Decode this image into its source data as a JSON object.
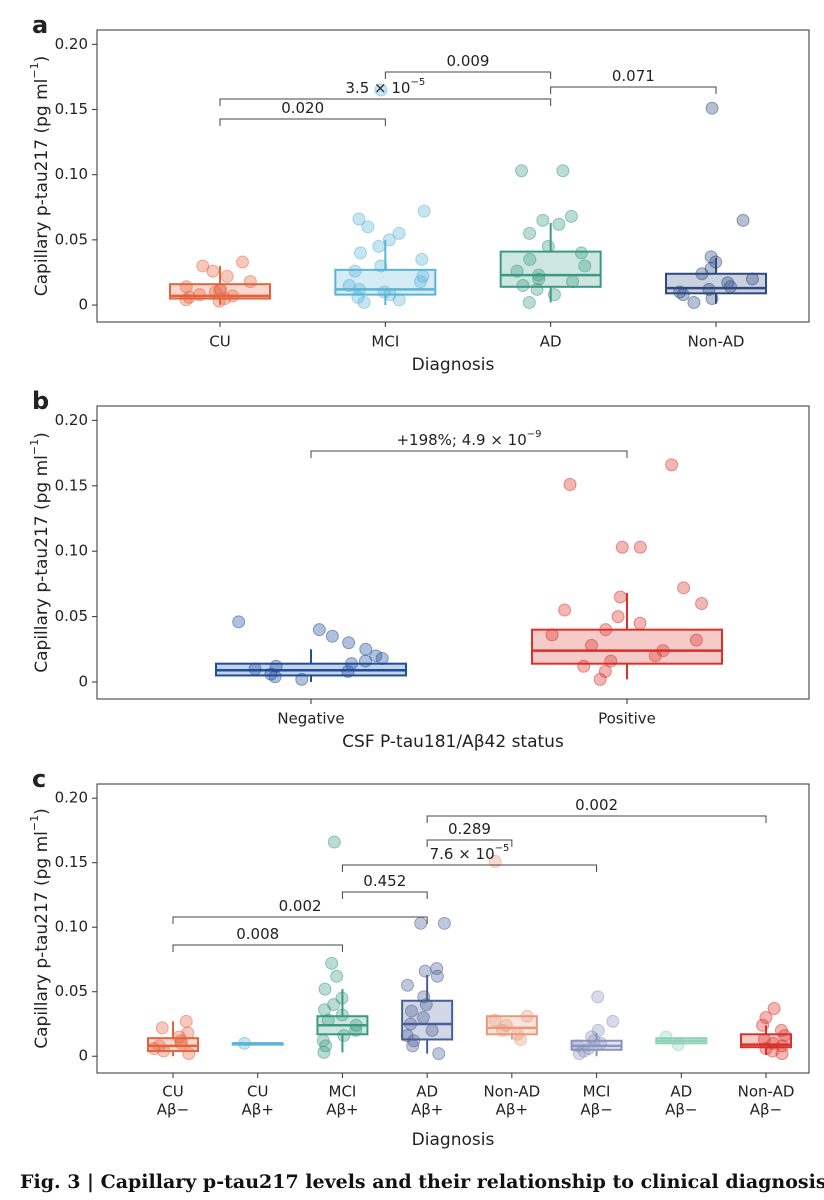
{
  "caption": "Fig. 3 | Capillary p-tau217 levels and their relationship to clinical diagnosis",
  "chart_data": [
    {
      "type": "box",
      "panel_label": "a",
      "ylabel": "Capillary p-tau217 (pg ml",
      "ylabel_exponent": "−1",
      "ylabel_end": ")",
      "xlabel": "Diagnosis",
      "ylim": [
        -0.013,
        0.211
      ],
      "yticks": [
        0,
        0.05,
        {
          "value": 0.1,
          "label": "0.10"
        },
        0.15,
        {
          "value": 0.2,
          "label": "0.20"
        }
      ],
      "categories": [
        "CU",
        "MCI",
        "AD",
        "Non-AD"
      ],
      "boxes": [
        {
          "color": "#e4633f",
          "q1": 0.005,
          "median": 0.007,
          "q3": 0.016,
          "whisker_low": 0,
          "whisker_high": 0.03,
          "points": [
            0.003,
            0.005,
            0.006,
            0.008,
            0.01,
            0.012,
            0.014,
            0.018,
            0.022,
            0.026,
            0.03,
            0.033,
            0.007,
            0.004,
            0.011
          ]
        },
        {
          "color": "#5ab4d6",
          "q1": 0.008,
          "median": 0.012,
          "q3": 0.027,
          "whisker_low": 0,
          "whisker_high": 0.05,
          "points": [
            0.002,
            0.004,
            0.006,
            0.008,
            0.01,
            0.012,
            0.015,
            0.018,
            0.022,
            0.026,
            0.03,
            0.035,
            0.04,
            0.045,
            0.05,
            0.055,
            0.06,
            0.066,
            0.072,
            0.165
          ]
        },
        {
          "color": "#3a9a82",
          "q1": 0.014,
          "median": 0.023,
          "q3": 0.041,
          "whisker_low": 0.002,
          "whisker_high": 0.063,
          "points": [
            0.002,
            0.008,
            0.012,
            0.015,
            0.018,
            0.02,
            0.023,
            0.026,
            0.03,
            0.035,
            0.04,
            0.045,
            0.055,
            0.062,
            0.065,
            0.068,
            0.103,
            0.103
          ]
        },
        {
          "color": "#2e4a80",
          "q1": 0.009,
          "median": 0.013,
          "q3": 0.024,
          "whisker_low": 0.001,
          "whisker_high": 0.036,
          "points": [
            0.002,
            0.005,
            0.008,
            0.01,
            0.012,
            0.014,
            0.017,
            0.02,
            0.024,
            0.028,
            0.033,
            0.037,
            0.065,
            0.151
          ]
        }
      ],
      "comparisons": [
        {
          "from": 0,
          "to": 1,
          "label": "0.020"
        },
        {
          "from": 0,
          "to": 2,
          "label": "3.5 × 10",
          "exponent": "−5"
        },
        {
          "from": 2,
          "to": 3,
          "label": "0.071"
        },
        {
          "from": 1,
          "to": 2,
          "label": "0.009"
        }
      ]
    },
    {
      "type": "box",
      "panel_label": "b",
      "ylabel": "Capillary p-tau217 (pg ml",
      "ylabel_exponent": "−1",
      "ylabel_end": ")",
      "xlabel": "CSF P-tau181/Aβ42 status",
      "ylim": [
        -0.013,
        0.211
      ],
      "yticks": [
        0,
        0.05,
        {
          "value": 0.1,
          "label": "0.10"
        },
        0.15,
        {
          "value": 0.2,
          "label": "0.20"
        }
      ],
      "categories": [
        "Negative",
        "Positive"
      ],
      "boxes": [
        {
          "color": "#1f4e9a",
          "q1": 0.005,
          "median": 0.009,
          "q3": 0.014,
          "whisker_low": 0,
          "whisker_high": 0.025,
          "points": [
            0.002,
            0.004,
            0.006,
            0.008,
            0.01,
            0.012,
            0.014,
            0.016,
            0.018,
            0.02,
            0.025,
            0.03,
            0.035,
            0.04,
            0.046
          ]
        },
        {
          "color": "#d9302a",
          "q1": 0.014,
          "median": 0.024,
          "q3": 0.04,
          "whisker_low": 0.002,
          "whisker_high": 0.068,
          "points": [
            0.002,
            0.008,
            0.012,
            0.016,
            0.02,
            0.024,
            0.028,
            0.032,
            0.036,
            0.04,
            0.045,
            0.05,
            0.055,
            0.06,
            0.065,
            0.072,
            0.103,
            0.103,
            0.151,
            0.166
          ]
        }
      ],
      "comparisons": [
        {
          "from": 0,
          "to": 1,
          "label": "+198%; 4.9 × 10",
          "exponent": "−9"
        }
      ]
    },
    {
      "type": "box",
      "panel_label": "c",
      "ylabel": "Capillary p-tau217 (pg ml",
      "ylabel_exponent": "−1",
      "ylabel_end": ")",
      "xlabel": "Diagnosis",
      "ylim": [
        -0.013,
        0.211
      ],
      "yticks": [
        0,
        0.05,
        {
          "value": 0.1,
          "label": "0.10"
        },
        0.15,
        {
          "value": 0.2,
          "label": "0.20"
        }
      ],
      "categories": [
        [
          "CU",
          "Aβ−"
        ],
        [
          "CU",
          "Aβ+"
        ],
        [
          "MCI",
          "Aβ+"
        ],
        [
          "AD",
          "Aβ+"
        ],
        [
          "Non-AD",
          "Aβ+"
        ],
        [
          "MCI",
          "Aβ−"
        ],
        [
          "AD",
          "Aβ−"
        ],
        [
          "Non-AD",
          "Aβ−"
        ]
      ],
      "boxes": [
        {
          "color": "#e4633f",
          "q1": 0.004,
          "median": 0.008,
          "q3": 0.014,
          "whisker_low": 0,
          "whisker_high": 0.027,
          "points": [
            0.002,
            0.004,
            0.006,
            0.008,
            0.01,
            0.012,
            0.015,
            0.018,
            0.022,
            0.027
          ]
        },
        {
          "color": "#5ab4d6",
          "q1": 0.009,
          "median": 0.01,
          "q3": 0.01,
          "whisker_low": 0.009,
          "whisker_high": 0.01,
          "points": [
            0.01
          ]
        },
        {
          "color": "#3a9a82",
          "q1": 0.017,
          "median": 0.024,
          "q3": 0.031,
          "whisker_low": 0.003,
          "whisker_high": 0.052,
          "points": [
            0.003,
            0.008,
            0.012,
            0.016,
            0.02,
            0.024,
            0.028,
            0.032,
            0.036,
            0.04,
            0.045,
            0.052,
            0.062,
            0.072,
            0.166
          ]
        },
        {
          "color": "#4a5e96",
          "q1": 0.013,
          "median": 0.025,
          "q3": 0.043,
          "whisker_low": 0.002,
          "whisker_high": 0.063,
          "points": [
            0.002,
            0.008,
            0.012,
            0.016,
            0.02,
            0.025,
            0.03,
            0.035,
            0.04,
            0.046,
            0.055,
            0.062,
            0.066,
            0.068,
            0.103,
            0.103
          ]
        },
        {
          "color": "#e8997a",
          "q1": 0.017,
          "median": 0.022,
          "q3": 0.031,
          "whisker_low": 0.013,
          "whisker_high": 0.031,
          "points": [
            0.013,
            0.017,
            0.02,
            0.024,
            0.028,
            0.031,
            0.151
          ]
        },
        {
          "color": "#8a95bf",
          "q1": 0.005,
          "median": 0.008,
          "q3": 0.012,
          "whisker_low": 0,
          "whisker_high": 0.018,
          "points": [
            0.002,
            0.004,
            0.006,
            0.008,
            0.01,
            0.012,
            0.015,
            0.02,
            0.027,
            0.046
          ]
        },
        {
          "color": "#8fd2b8",
          "q1": 0.01,
          "median": 0.012,
          "q3": 0.014,
          "whisker_low": 0.01,
          "whisker_high": 0.014,
          "points": [
            0.009,
            0.015
          ]
        },
        {
          "color": "#d9302a",
          "q1": 0.007,
          "median": 0.009,
          "q3": 0.017,
          "whisker_low": 0.001,
          "whisker_high": 0.024,
          "points": [
            0.002,
            0.004,
            0.006,
            0.008,
            0.01,
            0.013,
            0.016,
            0.02,
            0.024,
            0.03,
            0.037
          ]
        }
      ],
      "comparisons": [
        {
          "from": 0,
          "to": 2,
          "label": "0.008"
        },
        {
          "from": 0,
          "to": 3,
          "label": "0.002"
        },
        {
          "from": 2,
          "to": 3,
          "label": "0.452"
        },
        {
          "from": 2,
          "to": 5,
          "label": "7.6 × 10",
          "exponent": "−5"
        },
        {
          "from": 3,
          "to": 4,
          "label": "0.289"
        },
        {
          "from": 3,
          "to": 7,
          "label": "0.002"
        }
      ]
    }
  ]
}
